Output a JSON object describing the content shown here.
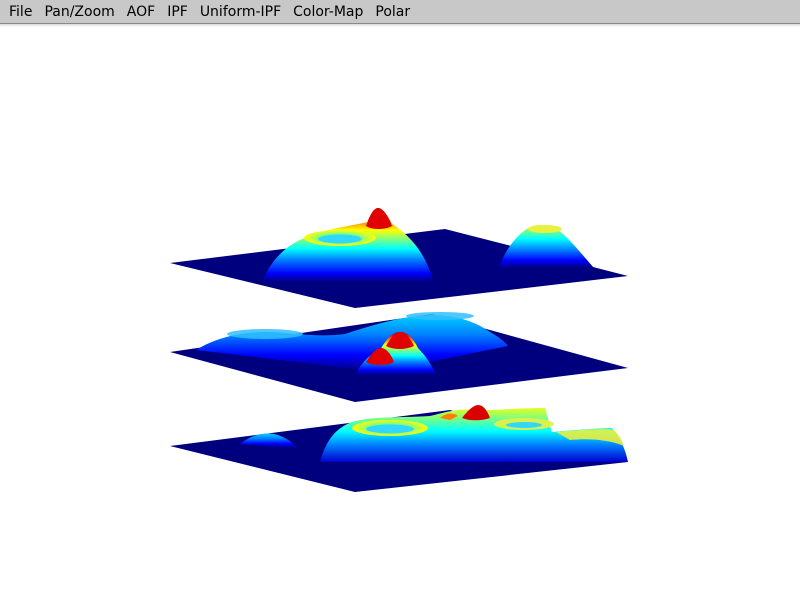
{
  "menu": {
    "items": [
      "File",
      "Pan/Zoom",
      "AOF",
      "IPF",
      "Uniform-IPF",
      "Color-Map",
      "Polar"
    ]
  },
  "viewport": {
    "background": "#ffffff",
    "colormap": "jet",
    "colormap_stops": [
      "#00007f",
      "#0000ff",
      "#007fff",
      "#00ffff",
      "#7fff7f",
      "#ffff00",
      "#ff7f00",
      "#ff0000",
      "#7f0000"
    ],
    "layer_count": 3
  }
}
